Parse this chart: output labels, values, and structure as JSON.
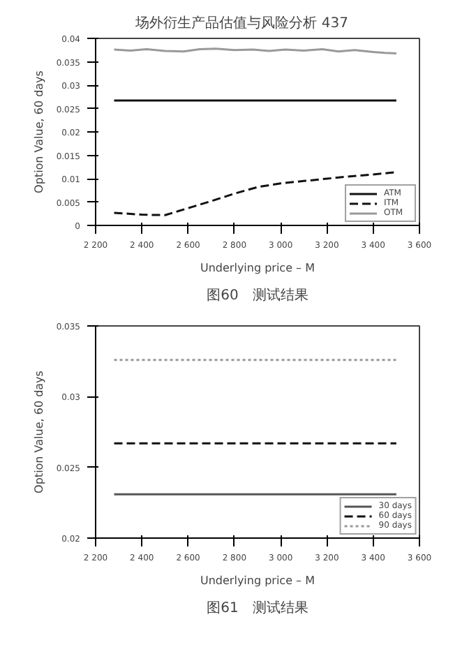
{
  "chart_data": [
    {
      "type": "line",
      "title": "图60　测试结果",
      "annotations": [
        "场外衍生产品估值与风险分析",
        "437"
      ],
      "xlabel": "Underlying price – M",
      "ylabel": "Option Value, 60 days",
      "xlim": [
        2200,
        3600
      ],
      "xticks": [
        {
          "value": 2200,
          "label": "2 200"
        },
        {
          "value": 2400,
          "label": "2 400"
        },
        {
          "value": 2600,
          "label": "2 600"
        },
        {
          "value": 2800,
          "label": "2 800"
        },
        {
          "value": 3000,
          "label": "3 000"
        },
        {
          "value": 3200,
          "label": "3 200"
        },
        {
          "value": 3400,
          "label": "3 400"
        },
        {
          "value": 3600,
          "label": "3 600"
        }
      ],
      "ylim": [
        0,
        0.04
      ],
      "yticks": [
        0,
        0.005,
        0.01,
        0.015,
        0.02,
        0.025,
        0.03,
        0.035,
        0.04
      ],
      "grid": false,
      "legend": "bottom right",
      "series": [
        {
          "name": "ATM",
          "color": "#111111",
          "line_style": "solid",
          "x": [
            2280,
            3500
          ],
          "values": [
            0.0267,
            0.0267
          ]
        },
        {
          "name": "ITM",
          "color": "#111111",
          "line_style": "dashed",
          "x": [
            2280,
            2400,
            2500,
            2600,
            2700,
            2800,
            2900,
            3000,
            3100,
            3200,
            3300,
            3400,
            3500
          ],
          "values": [
            0.0027,
            0.0023,
            0.0022,
            0.0037,
            0.0052,
            0.0068,
            0.0082,
            0.009,
            0.0095,
            0.01,
            0.0105,
            0.0109,
            0.0114
          ]
        },
        {
          "name": "OTM",
          "color": "#999999",
          "line_style": "solid",
          "x": [
            2280,
            2350,
            2420,
            2500,
            2580,
            2650,
            2720,
            2800,
            2880,
            2950,
            3020,
            3100,
            3180,
            3250,
            3320,
            3400,
            3450,
            3500
          ],
          "values": [
            0.0376,
            0.0374,
            0.0377,
            0.0373,
            0.0372,
            0.0377,
            0.0378,
            0.0375,
            0.0376,
            0.0373,
            0.0376,
            0.0374,
            0.0377,
            0.0372,
            0.0375,
            0.0371,
            0.0369,
            0.0368
          ]
        }
      ]
    },
    {
      "type": "line",
      "title": "图61　测试结果",
      "xlabel": "Underlying price – M",
      "ylabel": "Option Value, 60 days",
      "xlim": [
        2200,
        3600
      ],
      "xticks": [
        {
          "value": 2200,
          "label": "2 200"
        },
        {
          "value": 2400,
          "label": "2 400"
        },
        {
          "value": 2600,
          "label": "2 600"
        },
        {
          "value": 2800,
          "label": "2 800"
        },
        {
          "value": 3000,
          "label": "3 000"
        },
        {
          "value": 3200,
          "label": "3 200"
        },
        {
          "value": 3400,
          "label": "3 400"
        },
        {
          "value": 3600,
          "label": "3 600"
        }
      ],
      "ylim": [
        0.02,
        0.035
      ],
      "yticks": [
        0.02,
        0.025,
        0.03,
        0.035
      ],
      "grid": false,
      "legend": "bottom right",
      "series": [
        {
          "name": "30 days",
          "color": "#555555",
          "line_style": "solid",
          "x": [
            2280,
            3500
          ],
          "values": [
            0.0231,
            0.0231
          ]
        },
        {
          "name": "60 days",
          "color": "#111111",
          "line_style": "dashed",
          "x": [
            2280,
            3500
          ],
          "values": [
            0.0267,
            0.0267
          ]
        },
        {
          "name": "90 days",
          "color": "#999999",
          "line_style": "dotted",
          "x": [
            2280,
            3500
          ],
          "values": [
            0.0326,
            0.0326
          ]
        }
      ]
    }
  ]
}
